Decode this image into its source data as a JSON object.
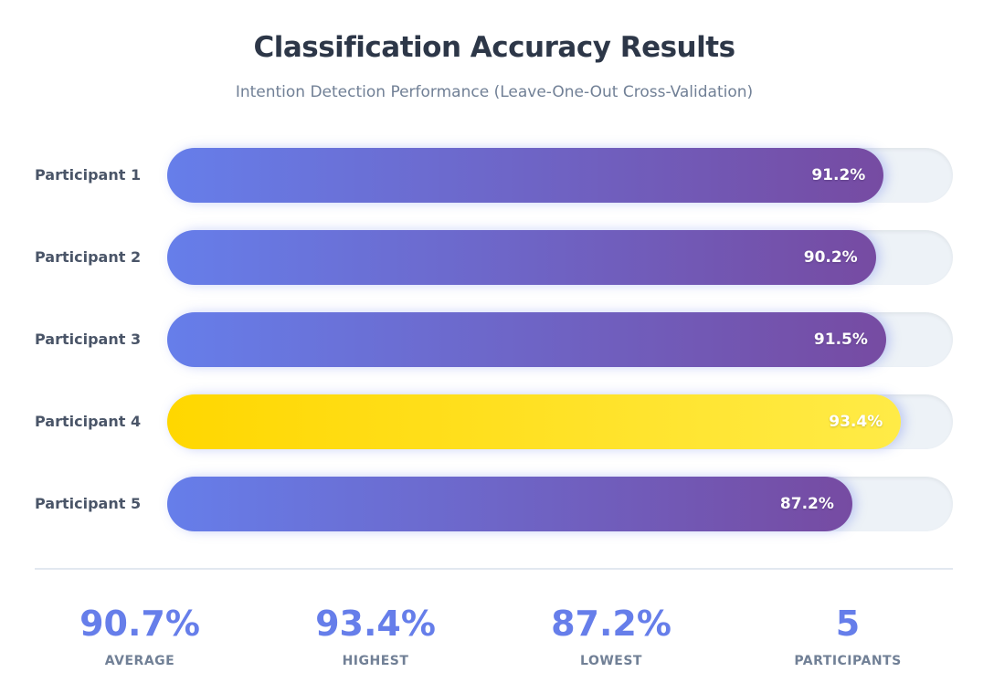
{
  "header": {
    "title": "Classification Accuracy Results",
    "subtitle": "Intention Detection Performance (Leave-One-Out Cross-Validation)"
  },
  "chart_data": {
    "type": "bar",
    "orientation": "horizontal",
    "title": "Classification Accuracy Results",
    "subtitle": "Intention Detection Performance (Leave-One-Out Cross-Validation)",
    "categories": [
      "Participant 1",
      "Participant 2",
      "Participant 3",
      "Participant 4",
      "Participant 5"
    ],
    "values": [
      91.2,
      90.2,
      91.5,
      93.4,
      87.2
    ],
    "labels": [
      "91.2%",
      "90.2%",
      "91.5%",
      "93.4%",
      "87.2%"
    ],
    "highlight_index": 3,
    "xlim": [
      0,
      100
    ],
    "colors": {
      "gradient_start": "#667eea",
      "gradient_end": "#764ba2",
      "highlight_start": "#ffd700",
      "highlight_end": "#ffeb47",
      "track": "#edf2f7"
    }
  },
  "stats": [
    {
      "value": "90.7%",
      "label": "AVERAGE"
    },
    {
      "value": "93.4%",
      "label": "HIGHEST"
    },
    {
      "value": "87.2%",
      "label": "LOWEST"
    },
    {
      "value": "5",
      "label": "PARTICIPANTS"
    }
  ]
}
